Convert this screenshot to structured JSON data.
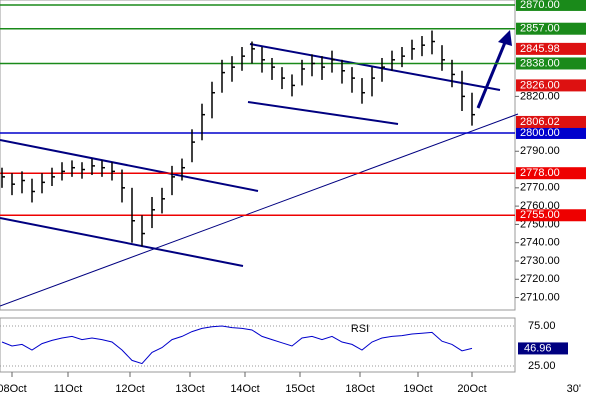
{
  "chart_data": [
    {
      "type": "ohlc",
      "color": "#000000",
      "xlim": [
        -0.2,
        51.3
      ],
      "xticks": [
        {
          "value": 1,
          "label": "08Oct"
        },
        {
          "value": 6.6,
          "label": "11Oct"
        },
        {
          "value": 12.8,
          "label": "12Oct"
        },
        {
          "value": 18.8,
          "label": "13Oct"
        },
        {
          "value": 24.3,
          "label": "14Oct"
        },
        {
          "value": 29.8,
          "label": "15Oct"
        },
        {
          "value": 35.8,
          "label": "18Oct"
        },
        {
          "value": 41.6,
          "label": "19Oct"
        },
        {
          "value": 47,
          "label": "20Oct"
        }
      ],
      "timeframe": "30'",
      "ylim": [
        2703.2,
        2872.7
      ],
      "yticks": [
        {
          "value": 2710,
          "label": "2710.00"
        },
        {
          "value": 2720,
          "label": "2720.00"
        },
        {
          "value": 2730,
          "label": "2730.00"
        },
        {
          "value": 2740,
          "label": "2740.00"
        },
        {
          "value": 2750,
          "label": "2750.00"
        },
        {
          "value": 2760,
          "label": "2760.00"
        },
        {
          "value": 2770,
          "label": "2770.00"
        },
        {
          "value": 2790,
          "label": "2790.00"
        },
        {
          "value": 2820,
          "label": "2820.00"
        }
      ],
      "levels": [
        {
          "value": 2870,
          "label": "2870.00",
          "color": "#1a8a1a"
        },
        {
          "value": 2857,
          "label": "2857.00",
          "color": "#1a8a1a"
        },
        {
          "value": 2838,
          "label": "2838.00",
          "color": "#1a8a1a"
        },
        {
          "value": 2800,
          "label": "2800.00",
          "color": "#0000cc"
        },
        {
          "value": 2778,
          "label": "2778.00",
          "color": "#ee0000"
        },
        {
          "value": 2755,
          "label": "2755.00",
          "color": "#ee0000"
        }
      ],
      "markers": [
        {
          "value": 2845.98,
          "label": "2845.98",
          "color": "#dd1111"
        },
        {
          "value": 2826,
          "label": "2826.00",
          "color": "#dd1111"
        },
        {
          "value": 2806.02,
          "label": "2806.02",
          "color": "#dd1111"
        }
      ],
      "high": [
        2781,
        2778,
        2779,
        2775,
        2778,
        2781,
        2784,
        2785,
        2784,
        2786,
        2785,
        2784,
        2780,
        2770,
        2755,
        2765,
        2770,
        2782,
        2786,
        2802,
        2816,
        2828,
        2840,
        2842,
        2847,
        2850,
        2847,
        2841,
        2836,
        2832,
        2840,
        2843,
        2842,
        2845,
        2840,
        2836,
        2830,
        2836,
        2841,
        2845,
        2847,
        2851,
        2853,
        2856,
        2848,
        2840,
        2834,
        2822
      ],
      "low": [
        2770,
        2766,
        2767,
        2762,
        2767,
        2771,
        2774,
        2776,
        2775,
        2777,
        2776,
        2774,
        2762,
        2740,
        2738,
        2748,
        2756,
        2766,
        2774,
        2784,
        2796,
        2808,
        2822,
        2828,
        2834,
        2838,
        2833,
        2829,
        2824,
        2820,
        2826,
        2831,
        2829,
        2833,
        2827,
        2822,
        2816,
        2820,
        2828,
        2834,
        2836,
        2840,
        2842,
        2843,
        2834,
        2825,
        2812,
        2804
      ],
      "close": [
        2776,
        2772,
        2774,
        2768,
        2773,
        2776,
        2779,
        2781,
        2780,
        2782,
        2781,
        2779,
        2770,
        2752,
        2745,
        2758,
        2764,
        2776,
        2781,
        2795,
        2810,
        2822,
        2833,
        2836,
        2842,
        2846,
        2840,
        2836,
        2830,
        2826,
        2835,
        2838,
        2836,
        2840,
        2834,
        2830,
        2822,
        2830,
        2836,
        2840,
        2842,
        2846,
        2848,
        2850,
        2840,
        2832,
        2820,
        2810
      ]
    },
    {
      "type": "line",
      "title": "RSI",
      "color": "#0000cc",
      "xlim": [
        -0.2,
        51.3
      ],
      "ylim": [
        17.5,
        85
      ],
      "yticks": [
        {
          "value": 75,
          "label": "75.00"
        },
        {
          "value": 25,
          "label": "25.00"
        }
      ],
      "current": {
        "value": 46.96,
        "label": "46.96"
      },
      "values": [
        55,
        50,
        52,
        45,
        53,
        57,
        60,
        62,
        58,
        60,
        58,
        55,
        45,
        32,
        28,
        42,
        48,
        58,
        62,
        68,
        72,
        74,
        75,
        73,
        72,
        70,
        62,
        58,
        54,
        50,
        60,
        62,
        58,
        62,
        55,
        52,
        45,
        55,
        60,
        62,
        63,
        65,
        66,
        67,
        56,
        52,
        44,
        46.96
      ]
    }
  ]
}
